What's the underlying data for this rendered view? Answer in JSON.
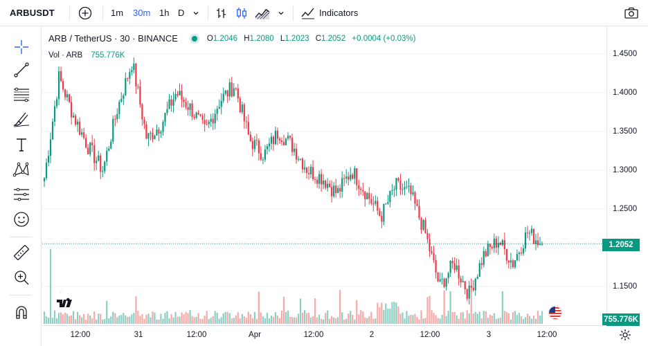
{
  "toolbar": {
    "symbol": "ARBUSDT",
    "intervals": [
      {
        "label": "1m",
        "active": false
      },
      {
        "label": "30m",
        "active": true
      },
      {
        "label": "1h",
        "active": false
      },
      {
        "label": "D",
        "active": false
      }
    ],
    "indicators_label": "Indicators"
  },
  "legend": {
    "pair": "ARB / TetherUS · 30 · BINANCE",
    "ohlc": {
      "o_key": "O",
      "o": "1.2046",
      "h_key": "H",
      "h": "1.2080",
      "l_key": "L",
      "l": "1.2023",
      "c_key": "C",
      "c": "1.2052",
      "change": "+0.0004 (+0.03%)"
    },
    "vol_label": "Vol · ARB",
    "vol_value": "755.776K"
  },
  "price_axis": {
    "ticks": [
      "1.4500",
      "1.4000",
      "1.3500",
      "1.3000",
      "1.2500",
      "1.1500"
    ],
    "current_price": "1.2052",
    "current_volume": "755.776K"
  },
  "time_axis": {
    "ticks": [
      "12:00",
      "31",
      "12:00",
      "Apr",
      "12:00",
      "2",
      "12:00",
      "3",
      "12:00"
    ]
  },
  "colors": {
    "up": "#089981",
    "down": "#f23645",
    "up_volume": "#8ccfc4",
    "down_volume": "#f7a9a7"
  },
  "chart_data": {
    "type": "candlestick",
    "price_range": [
      1.13,
      1.46
    ],
    "anchor_prices": [
      1.29,
      1.42,
      1.37,
      1.33,
      1.3,
      1.38,
      1.44,
      1.34,
      1.36,
      1.4,
      1.38,
      1.35,
      1.39,
      1.41,
      1.34,
      1.32,
      1.35,
      1.33,
      1.3,
      1.29,
      1.27,
      1.3,
      1.27,
      1.24,
      1.28,
      1.27,
      1.22,
      1.15,
      1.18,
      1.14,
      1.19,
      1.21,
      1.18,
      1.22,
      1.2052
    ],
    "last": {
      "open": 1.2046,
      "high": 1.208,
      "low": 1.2023,
      "close": 1.2052
    }
  }
}
